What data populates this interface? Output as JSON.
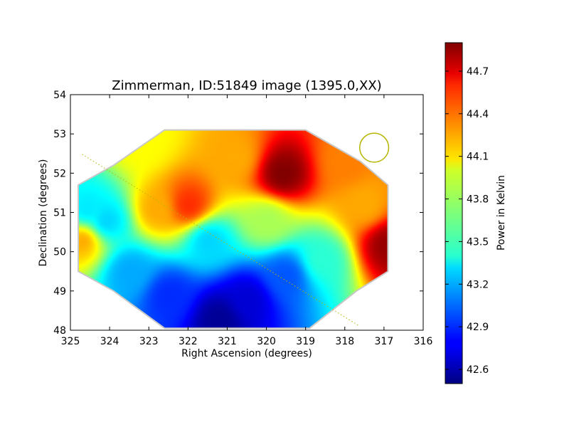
{
  "chart_data": {
    "type": "heatmap",
    "title": "Zimmerman, ID:51849 image (1395.0,XX)",
    "xlabel": "Right Ascension (degrees)",
    "ylabel": "Declination (degrees)",
    "xlim": [
      325,
      316
    ],
    "ylim": [
      48,
      54
    ],
    "x_ticks": [
      325,
      324,
      323,
      322,
      321,
      320,
      319,
      318,
      317,
      316
    ],
    "y_ticks": [
      48,
      49,
      50,
      51,
      52,
      53,
      54
    ],
    "colorbar": {
      "label": "Power in Kelvin",
      "range": [
        42.5,
        44.9
      ],
      "ticks": [
        "42.6",
        "42.9",
        "43.2",
        "43.5",
        "43.8",
        "44.1",
        "44.4",
        "44.7"
      ],
      "colormap": "jet"
    },
    "footprint_outline": [
      [
        322.6,
        53.1
      ],
      [
        319.0,
        53.1
      ],
      [
        317.6,
        52.3
      ],
      [
        316.9,
        51.7
      ],
      [
        316.9,
        49.5
      ],
      [
        317.7,
        49.0
      ],
      [
        318.9,
        48.05
      ],
      [
        322.6,
        48.05
      ],
      [
        323.9,
        49.0
      ],
      [
        324.8,
        49.5
      ],
      [
        324.8,
        51.7
      ],
      [
        323.9,
        52.2
      ]
    ],
    "field_value_samples": [
      {
        "ra": 321.2,
        "dec": 48.3,
        "value": 42.55
      },
      {
        "ra": 320.5,
        "dec": 48.8,
        "value": 42.7
      },
      {
        "ra": 322.5,
        "dec": 48.9,
        "value": 42.9
      },
      {
        "ra": 319.5,
        "dec": 49.4,
        "value": 43.0
      },
      {
        "ra": 323.5,
        "dec": 49.5,
        "value": 43.2
      },
      {
        "ra": 324.1,
        "dec": 50.8,
        "value": 43.3
      },
      {
        "ra": 324.6,
        "dec": 51.1,
        "value": 43.35
      },
      {
        "ra": 324.7,
        "dec": 50.3,
        "value": 44.2
      },
      {
        "ra": 321.5,
        "dec": 50.3,
        "value": 43.3
      },
      {
        "ra": 318.6,
        "dec": 49.8,
        "value": 43.5
      },
      {
        "ra": 320.0,
        "dec": 50.8,
        "value": 43.8
      },
      {
        "ra": 322.0,
        "dec": 51.2,
        "value": 44.5
      },
      {
        "ra": 322.8,
        "dec": 51.1,
        "value": 44.2
      },
      {
        "ra": 319.6,
        "dec": 52.0,
        "value": 44.9
      },
      {
        "ra": 320.8,
        "dec": 52.4,
        "value": 44.2
      },
      {
        "ra": 318.0,
        "dec": 52.3,
        "value": 44.3
      },
      {
        "ra": 316.9,
        "dec": 50.2,
        "value": 44.85
      },
      {
        "ra": 317.5,
        "dec": 51.2,
        "value": 44.2
      },
      {
        "ra": 323.2,
        "dec": 52.8,
        "value": 44.0
      }
    ],
    "beam_circle": {
      "ra": 317.25,
      "dec": 52.65,
      "radius_deg": 0.37,
      "color": "#b5b500"
    },
    "diagonal_line": {
      "from": [
        324.7,
        52.48
      ],
      "to": [
        317.65,
        48.12
      ],
      "color": "#b5b500"
    },
    "outline_color": "#c8c8c8"
  }
}
